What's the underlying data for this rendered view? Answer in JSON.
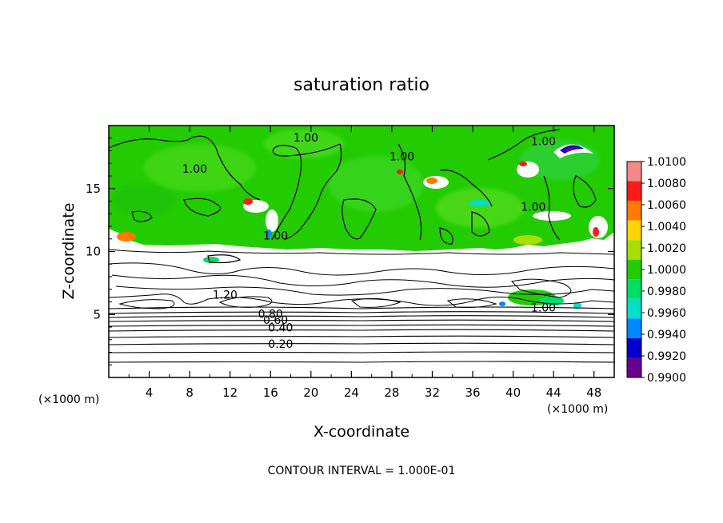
{
  "chart_data": {
    "type": "heatmap",
    "title": "saturation ratio",
    "xlabel": "X-coordinate",
    "ylabel": "Z-coordinate",
    "x_unit_left": "(×1000 m)",
    "x_unit_right": "(×1000 m)",
    "xlim": [
      0,
      50
    ],
    "ylim": [
      0,
      20
    ],
    "x_ticks": [
      4,
      8,
      12,
      16,
      20,
      24,
      28,
      32,
      36,
      40,
      44,
      48
    ],
    "y_ticks": [
      5,
      10,
      15
    ],
    "footer": "CONTOUR INTERVAL = 1.000E-01",
    "colorbar": {
      "levels": [
        "1.0100",
        "1.0080",
        "1.0060",
        "1.0040",
        "1.0020",
        "1.0000",
        "0.9980",
        "0.9960",
        "0.9940",
        "0.9920",
        "0.9900"
      ],
      "colors": [
        "#f28a8a",
        "#ff1a1a",
        "#ff7a00",
        "#ffd400",
        "#aadd00",
        "#22cc00",
        "#00dd66",
        "#00e0c8",
        "#0088ff",
        "#0000cc",
        "#6a0090"
      ]
    },
    "contour_labels": [
      {
        "text": "1.00",
        "x": 19.5,
        "z": 19.0
      },
      {
        "text": "1.00",
        "x": 8.5,
        "z": 16.5
      },
      {
        "text": "1.00",
        "x": 29.0,
        "z": 17.5
      },
      {
        "text": "1.00",
        "x": 43.0,
        "z": 18.7
      },
      {
        "text": "1.00",
        "x": 42.0,
        "z": 13.5
      },
      {
        "text": "1.00",
        "x": 16.5,
        "z": 11.2
      },
      {
        "text": "1.20",
        "x": 11.5,
        "z": 6.5
      },
      {
        "text": "1.00",
        "x": 43.0,
        "z": 5.5
      },
      {
        "text": "0.80",
        "x": 16.0,
        "z": 5.0
      },
      {
        "text": "0.60",
        "x": 16.5,
        "z": 4.5
      },
      {
        "text": "0.40",
        "x": 17.0,
        "z": 3.9
      },
      {
        "text": "0.20",
        "x": 17.0,
        "z": 2.6
      }
    ]
  }
}
